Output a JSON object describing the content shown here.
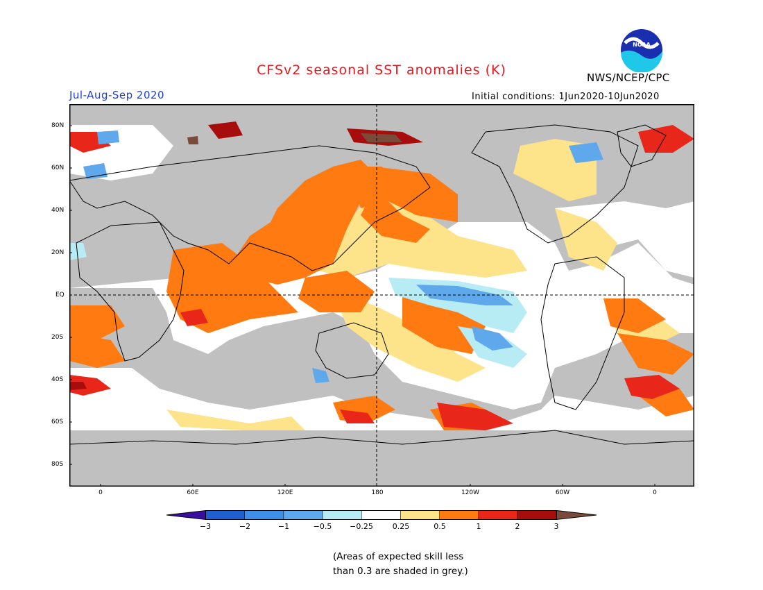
{
  "title": "CFSv2 seasonal SST anomalies (K)",
  "season": "Jul-Aug-Sep 2020",
  "initial_conditions": "Initial conditions: 1Jun2020-10Jun2020",
  "agency": "NWS/NCEP/CPC",
  "logo_text": "NOAA",
  "lat_labels": [
    "80N",
    "60N",
    "40N",
    "20N",
    "EQ",
    "20S",
    "40S",
    "60S",
    "80S"
  ],
  "lon_labels": [
    "0",
    "60E",
    "120E",
    "180",
    "120W",
    "60W",
    "0"
  ],
  "colorbar": {
    "labels": [
      "−3",
      "−2",
      "−1",
      "−0.5",
      "−0.25",
      "0.25",
      "0.5",
      "1",
      "2",
      "3"
    ],
    "colors": [
      "#3a0fa0",
      "#1f5fcf",
      "#3f8fe8",
      "#5fa8ec",
      "#b8ecf5",
      "#ffffff",
      "#fde38a",
      "#ff7a10",
      "#e8261a",
      "#a80d0d",
      "#7a4a3a"
    ]
  },
  "note_line1": "(Areas of expected skill less",
  "note_line2": "than 0.3 are shaded in grey.)"
}
